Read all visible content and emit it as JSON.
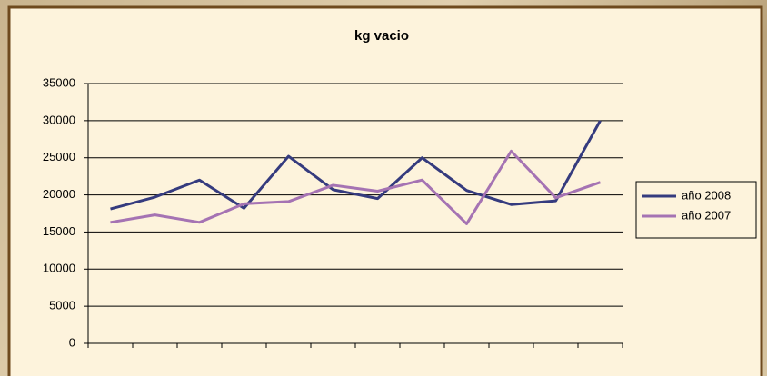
{
  "chart_data": {
    "type": "line",
    "title": "kg vacio",
    "categories": [
      null,
      null,
      null,
      null,
      null,
      null,
      null,
      null,
      null,
      null,
      null,
      null
    ],
    "series": [
      {
        "name": "año 2008",
        "color": "#353b7e",
        "values": [
          18100,
          19700,
          22000,
          18200,
          25200,
          20700,
          19500,
          25000,
          20600,
          18700,
          19200,
          30000
        ]
      },
      {
        "name": "año 2007",
        "color": "#a573b3",
        "values": [
          16300,
          17300,
          16300,
          18800,
          19100,
          21300,
          20500,
          22000,
          16100,
          25900,
          19600,
          21700
        ]
      }
    ],
    "ylim": [
      0,
      35000
    ],
    "yticks": [
      0,
      5000,
      10000,
      15000,
      20000,
      25000,
      30000,
      35000
    ],
    "grid": true,
    "legend": "right"
  }
}
